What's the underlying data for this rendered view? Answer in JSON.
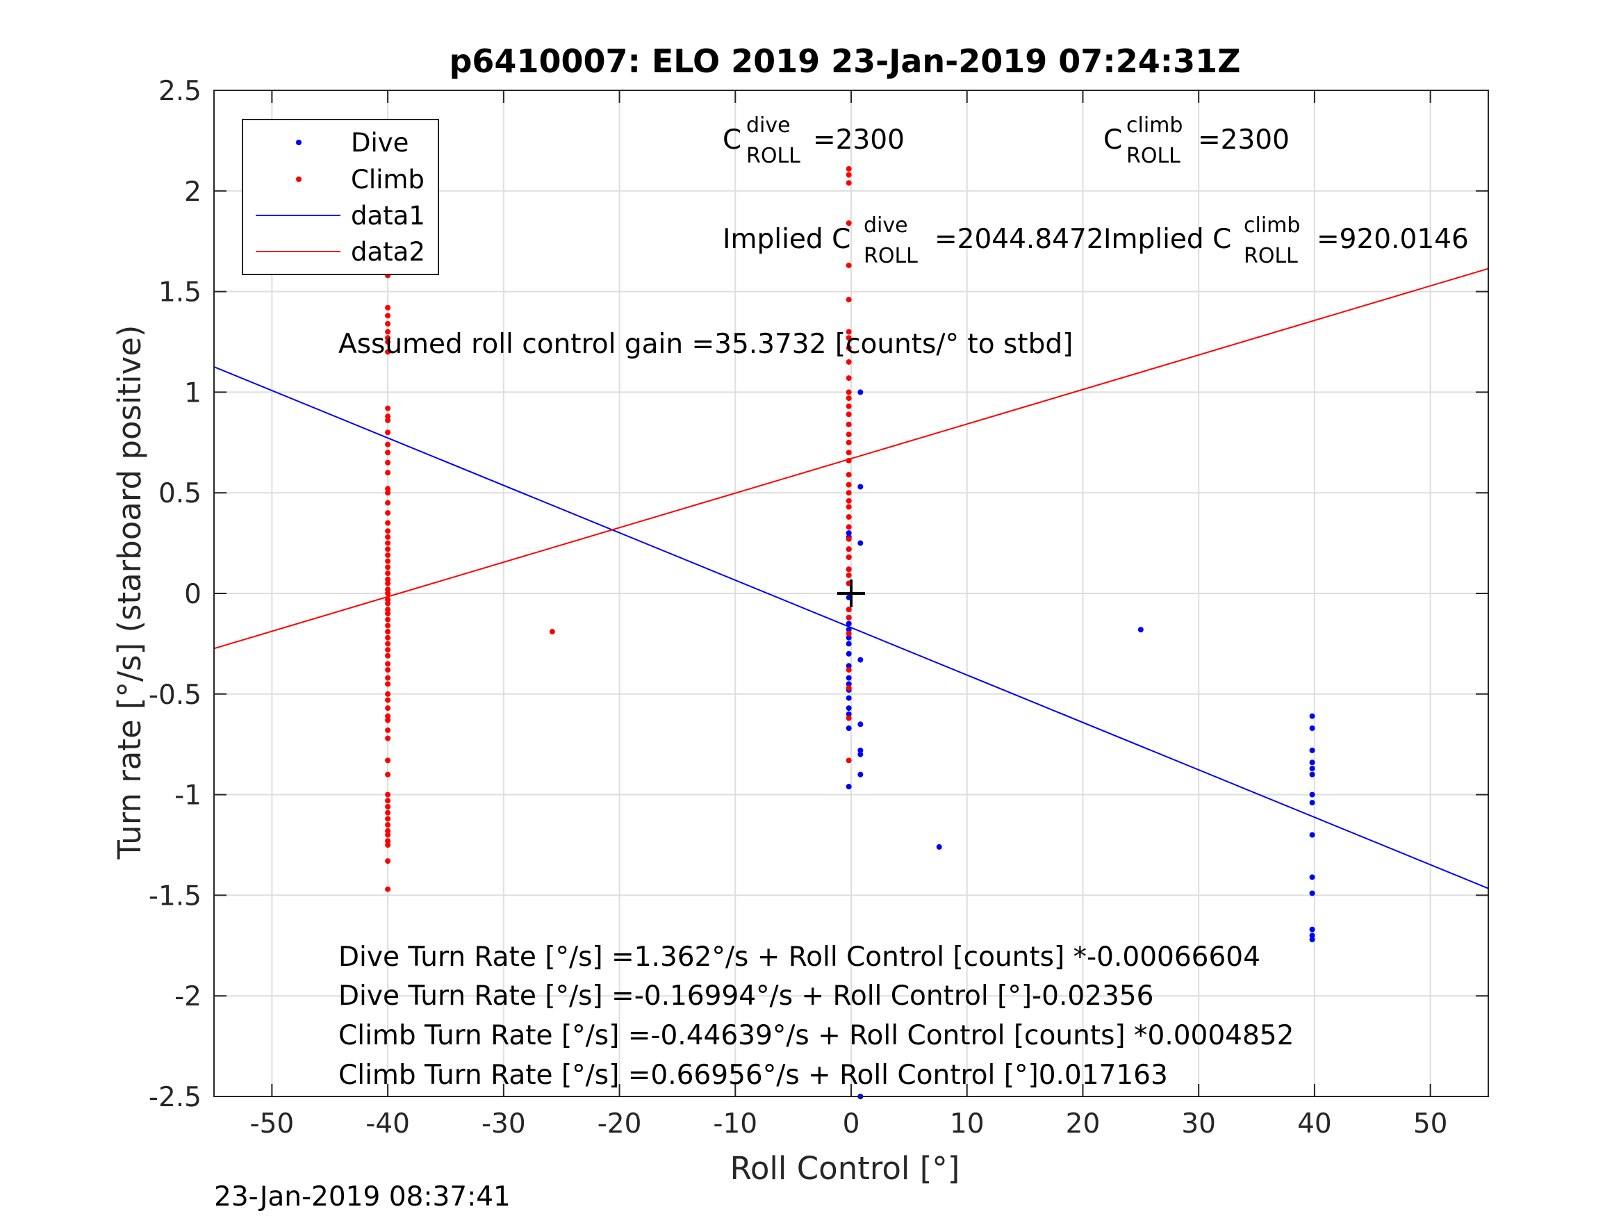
{
  "chart_data": {
    "type": "scatter",
    "title": "p6410007: ELO 2019 23-Jan-2019 07:24:31Z",
    "xlabel": "Roll Control [°]",
    "ylabel": "Turn rate [°/s] (starboard positive)",
    "xlim": [
      -55,
      55
    ],
    "ylim": [
      -2.5,
      2.5
    ],
    "xticks": [
      -50,
      -40,
      -30,
      -20,
      -10,
      0,
      10,
      20,
      30,
      40,
      50
    ],
    "yticks": [
      -2.5,
      -2,
      -1.5,
      -1,
      -0.5,
      0,
      0.5,
      1,
      1.5,
      2,
      2.5
    ],
    "xtick_labels": [
      "-50",
      "-40",
      "-30",
      "-20",
      "-10",
      "0",
      "10",
      "20",
      "30",
      "40",
      "50"
    ],
    "ytick_labels": [
      "-2.5",
      "-2",
      "-1.5",
      "-1",
      "-0.5",
      "0",
      "0.5",
      "1",
      "1.5",
      "2",
      "2.5"
    ],
    "grid": true,
    "legend_position": "top-left",
    "legend": [
      "Dive",
      "Climb",
      "data1",
      "data2"
    ],
    "series": [
      {
        "name": "Dive",
        "kind": "points",
        "color": "#0000ff",
        "points": [
          [
            -0.2,
            0.3
          ],
          [
            -0.2,
            0.28
          ],
          [
            -0.2,
            0.22
          ],
          [
            -0.2,
            0.18
          ],
          [
            -0.2,
            0.12
          ],
          [
            -0.2,
            0.05
          ],
          [
            -0.2,
            -0.02
          ],
          [
            -0.2,
            -0.08
          ],
          [
            -0.2,
            -0.12
          ],
          [
            -0.2,
            -0.15
          ],
          [
            -0.2,
            -0.18
          ],
          [
            -0.2,
            -0.22
          ],
          [
            -0.2,
            -0.25
          ],
          [
            -0.2,
            -0.3
          ],
          [
            -0.2,
            -0.36
          ],
          [
            -0.2,
            -0.42
          ],
          [
            -0.2,
            -0.45
          ],
          [
            -0.2,
            -0.48
          ],
          [
            -0.2,
            -0.52
          ],
          [
            -0.2,
            -0.57
          ],
          [
            -0.2,
            -0.6
          ],
          [
            -0.2,
            -0.67
          ],
          [
            -0.2,
            -0.96
          ],
          [
            0.8,
            1.0
          ],
          [
            0.8,
            0.53
          ],
          [
            0.8,
            0.25
          ],
          [
            0.8,
            -0.33
          ],
          [
            0.8,
            -0.65
          ],
          [
            0.8,
            -0.78
          ],
          [
            0.8,
            -0.8
          ],
          [
            0.8,
            -0.9
          ],
          [
            0.8,
            -2.5
          ],
          [
            7.6,
            -1.26
          ],
          [
            25.0,
            -0.18
          ],
          [
            39.8,
            -0.61
          ],
          [
            39.8,
            -0.67
          ],
          [
            39.8,
            -0.78
          ],
          [
            39.8,
            -0.84
          ],
          [
            39.8,
            -0.87
          ],
          [
            39.8,
            -0.9
          ],
          [
            39.8,
            -1.0
          ],
          [
            39.8,
            -1.04
          ],
          [
            39.8,
            -1.2
          ],
          [
            39.8,
            -1.41
          ],
          [
            39.8,
            -1.49
          ],
          [
            39.8,
            -1.67
          ],
          [
            39.8,
            -1.7
          ],
          [
            39.8,
            -1.72
          ]
        ]
      },
      {
        "name": "Climb",
        "kind": "points",
        "color": "#ff0000",
        "points": [
          [
            -25.8,
            -0.19
          ],
          [
            -0.2,
            2.11
          ],
          [
            -0.2,
            2.08
          ],
          [
            -0.2,
            2.04
          ],
          [
            -0.2,
            1.84
          ],
          [
            -0.2,
            1.63
          ],
          [
            -0.2,
            1.46
          ],
          [
            -0.2,
            1.3
          ],
          [
            -0.2,
            1.27
          ],
          [
            -0.2,
            1.22
          ],
          [
            -0.2,
            1.15
          ],
          [
            -0.2,
            1.07
          ],
          [
            -0.2,
            1.0
          ],
          [
            -0.2,
            0.97
          ],
          [
            -0.2,
            0.93
          ],
          [
            -0.2,
            0.89
          ],
          [
            -0.2,
            0.84
          ],
          [
            -0.2,
            0.79
          ],
          [
            -0.2,
            0.75
          ],
          [
            -0.2,
            0.7
          ],
          [
            -0.2,
            0.66
          ],
          [
            -0.2,
            0.59
          ],
          [
            -0.2,
            0.54
          ],
          [
            -0.2,
            0.5
          ],
          [
            -0.2,
            0.46
          ],
          [
            -0.2,
            0.43
          ],
          [
            -0.2,
            0.38
          ],
          [
            -0.2,
            0.33
          ],
          [
            -0.2,
            0.27
          ],
          [
            -0.2,
            0.22
          ],
          [
            -0.2,
            0.18
          ],
          [
            -0.2,
            0.12
          ],
          [
            -0.2,
            0.09
          ],
          [
            -0.2,
            0.05
          ],
          [
            -0.2,
            -0.08
          ],
          [
            -0.2,
            -0.12
          ],
          [
            -0.2,
            -0.2
          ],
          [
            -0.2,
            -0.38
          ],
          [
            -0.2,
            -0.47
          ],
          [
            -0.2,
            -0.62
          ],
          [
            -0.2,
            -0.83
          ],
          [
            -40,
            1.8
          ],
          [
            -40,
            1.78
          ],
          [
            -40,
            1.63
          ],
          [
            -40,
            1.58
          ],
          [
            -40,
            1.42
          ],
          [
            -40,
            1.38
          ],
          [
            -40,
            1.34
          ],
          [
            -40,
            1.3
          ],
          [
            -40,
            1.27
          ],
          [
            -40,
            1.25
          ],
          [
            -40,
            1.2
          ],
          [
            -40,
            0.92
          ],
          [
            -40,
            0.88
          ],
          [
            -40,
            0.86
          ],
          [
            -40,
            0.8
          ],
          [
            -40,
            0.74
          ],
          [
            -40,
            0.7
          ],
          [
            -40,
            0.65
          ],
          [
            -40,
            0.6
          ],
          [
            -40,
            0.52
          ],
          [
            -40,
            0.5
          ],
          [
            -40,
            0.45
          ],
          [
            -40,
            0.4
          ],
          [
            -40,
            0.35
          ],
          [
            -40,
            0.31
          ],
          [
            -40,
            0.28
          ],
          [
            -40,
            0.25
          ],
          [
            -40,
            0.22
          ],
          [
            -40,
            0.19
          ],
          [
            -40,
            0.16
          ],
          [
            -40,
            0.13
          ],
          [
            -40,
            0.1
          ],
          [
            -40,
            0.07
          ],
          [
            -40,
            0.05
          ],
          [
            -40,
            0.02
          ],
          [
            -40,
            0.0
          ],
          [
            -40,
            -0.03
          ],
          [
            -40,
            -0.05
          ],
          [
            -40,
            -0.08
          ],
          [
            -40,
            -0.1
          ],
          [
            -40,
            -0.13
          ],
          [
            -40,
            -0.16
          ],
          [
            -40,
            -0.19
          ],
          [
            -40,
            -0.22
          ],
          [
            -40,
            -0.25
          ],
          [
            -40,
            -0.28
          ],
          [
            -40,
            -0.31
          ],
          [
            -40,
            -0.35
          ],
          [
            -40,
            -0.38
          ],
          [
            -40,
            -0.42
          ],
          [
            -40,
            -0.45
          ],
          [
            -40,
            -0.5
          ],
          [
            -40,
            -0.53
          ],
          [
            -40,
            -0.57
          ],
          [
            -40,
            -0.61
          ],
          [
            -40,
            -0.63
          ],
          [
            -40,
            -0.68
          ],
          [
            -40,
            -0.72
          ],
          [
            -40,
            -0.83
          ],
          [
            -40,
            -0.9
          ],
          [
            -40,
            -1.0
          ],
          [
            -40,
            -1.03
          ],
          [
            -40,
            -1.06
          ],
          [
            -40,
            -1.09
          ],
          [
            -40,
            -1.12
          ],
          [
            -40,
            -1.15
          ],
          [
            -40,
            -1.18
          ],
          [
            -40,
            -1.2
          ],
          [
            -40,
            -1.23
          ],
          [
            -40,
            -1.25
          ],
          [
            -40,
            -1.33
          ],
          [
            -40,
            -1.47
          ]
        ]
      },
      {
        "name": "data1",
        "kind": "line",
        "color": "#0000ff",
        "x": [
          -55,
          55
        ],
        "y": [
          1.126,
          -1.466
        ]
      },
      {
        "name": "data2",
        "kind": "line",
        "color": "#ff0000",
        "x": [
          -55,
          55
        ],
        "y": [
          -0.274,
          1.614
        ]
      }
    ],
    "marker": {
      "symbol": "+",
      "x": 0,
      "y": 0,
      "color": "#000000"
    },
    "annotations": {
      "c_dive": {
        "base": "C",
        "sup": "dive",
        "sub": "ROLL",
        "value": "=2300"
      },
      "c_climb": {
        "base": "C",
        "sup": "climb",
        "sub": "ROLL",
        "value": "=2300"
      },
      "implied_dive": {
        "base": "Implied C",
        "sup": "dive",
        "sub": "ROLL",
        "value": "=2044.8472"
      },
      "implied_climb": {
        "base": "Implied C",
        "sup": "climb",
        "sub": "ROLL",
        "value": "=920.0146"
      },
      "gain": "Assumed roll control gain =35.3732 [counts/° to stbd]",
      "eq1": "Dive Turn Rate [°/s] =1.362°/s + Roll Control [counts] *-0.00066604",
      "eq2": "Dive Turn Rate [°/s] =-0.16994°/s + Roll Control [°]-0.02356",
      "eq3": "Climb Turn Rate [°/s] =-0.44639°/s + Roll Control [counts] *0.0004852",
      "eq4": "Climb Turn Rate [°/s] =0.66956°/s + Roll Control [°]0.017163"
    },
    "timestamp": "23-Jan-2019 08:37:41"
  }
}
